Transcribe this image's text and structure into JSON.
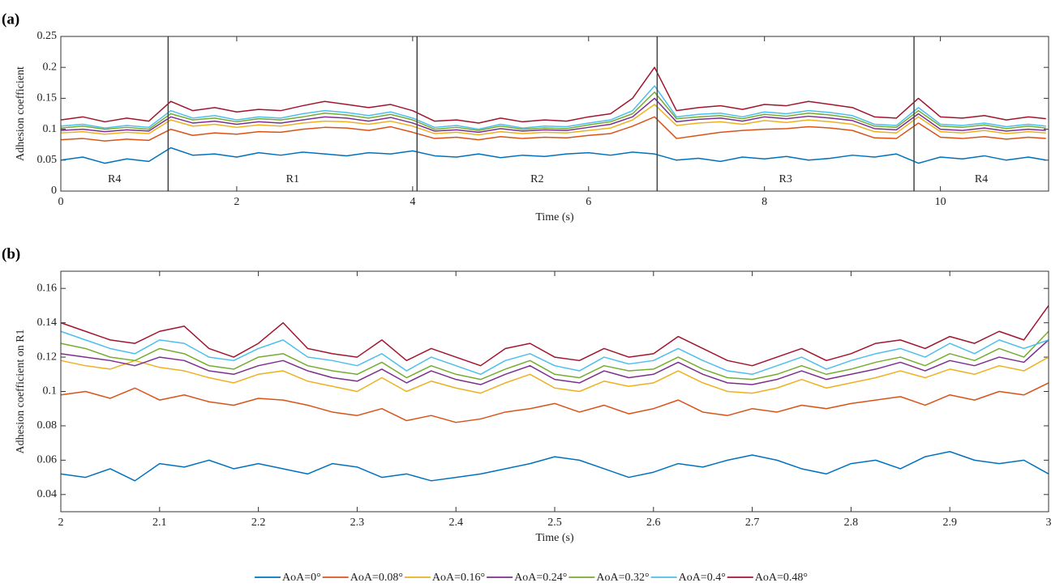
{
  "chart_data": [
    {
      "type": "line",
      "panel_label": "(a)",
      "x_label": "Time (s)",
      "y_label": "Adhesion coefficient",
      "x": [
        0,
        0.25,
        0.5,
        0.75,
        1,
        1.25,
        1.5,
        1.75,
        2,
        2.25,
        2.5,
        2.75,
        3,
        3.25,
        3.5,
        3.75,
        4,
        4.25,
        4.5,
        4.75,
        5,
        5.25,
        5.5,
        5.75,
        6,
        6.25,
        6.5,
        6.75,
        7,
        7.25,
        7.5,
        7.75,
        8,
        8.25,
        8.5,
        8.75,
        9,
        9.25,
        9.5,
        9.75,
        10,
        10.25,
        10.5,
        10.75,
        11,
        11.2
      ],
      "xlim": [
        0,
        11.23
      ],
      "xticks": [
        0,
        2,
        4,
        6,
        8,
        10
      ],
      "ylim": [
        0,
        0.25
      ],
      "yticks": [
        0,
        0.05,
        0.1,
        0.15,
        0.2,
        0.25
      ],
      "regions": [
        {
          "label": "R4",
          "start": 0,
          "end": 1.22
        },
        {
          "label": "R1",
          "start": 1.22,
          "end": 4.05
        },
        {
          "label": "R2",
          "start": 4.05,
          "end": 6.78
        },
        {
          "label": "R3",
          "start": 6.78,
          "end": 9.7
        },
        {
          "label": "R4",
          "start": 9.7,
          "end": 11.23
        }
      ],
      "series": [
        {
          "color": "#0072BD",
          "values": [
            0.05,
            0.055,
            0.045,
            0.052,
            0.048,
            0.07,
            0.058,
            0.06,
            0.055,
            0.062,
            0.058,
            0.063,
            0.06,
            0.057,
            0.062,
            0.06,
            0.065,
            0.057,
            0.055,
            0.06,
            0.054,
            0.058,
            0.056,
            0.06,
            0.062,
            0.058,
            0.063,
            0.06,
            0.05,
            0.053,
            0.048,
            0.055,
            0.052,
            0.056,
            0.05,
            0.053,
            0.058,
            0.055,
            0.06,
            0.045,
            0.055,
            0.052,
            0.057,
            0.05,
            0.055,
            0.05
          ]
        },
        {
          "color": "#D95319",
          "values": [
            0.083,
            0.085,
            0.081,
            0.084,
            0.082,
            0.1,
            0.09,
            0.094,
            0.092,
            0.096,
            0.095,
            0.1,
            0.103,
            0.102,
            0.098,
            0.104,
            0.095,
            0.085,
            0.087,
            0.083,
            0.088,
            0.085,
            0.087,
            0.086,
            0.09,
            0.093,
            0.105,
            0.12,
            0.085,
            0.09,
            0.095,
            0.098,
            0.1,
            0.101,
            0.104,
            0.102,
            0.098,
            0.086,
            0.085,
            0.11,
            0.087,
            0.085,
            0.088,
            0.084,
            0.087,
            0.085
          ]
        },
        {
          "color": "#EDB120",
          "values": [
            0.094,
            0.096,
            0.092,
            0.095,
            0.093,
            0.115,
            0.105,
            0.108,
            0.103,
            0.107,
            0.105,
            0.11,
            0.113,
            0.112,
            0.108,
            0.113,
            0.105,
            0.093,
            0.095,
            0.091,
            0.096,
            0.093,
            0.095,
            0.094,
            0.098,
            0.102,
            0.115,
            0.14,
            0.106,
            0.11,
            0.112,
            0.108,
            0.114,
            0.111,
            0.115,
            0.112,
            0.108,
            0.096,
            0.094,
            0.12,
            0.096,
            0.094,
            0.098,
            0.093,
            0.096,
            0.094
          ]
        },
        {
          "color": "#7E2F8E",
          "values": [
            0.098,
            0.1,
            0.096,
            0.099,
            0.097,
            0.12,
            0.11,
            0.113,
            0.108,
            0.112,
            0.11,
            0.115,
            0.12,
            0.118,
            0.113,
            0.119,
            0.11,
            0.097,
            0.099,
            0.095,
            0.101,
            0.097,
            0.099,
            0.098,
            0.103,
            0.108,
            0.12,
            0.15,
            0.112,
            0.116,
            0.118,
            0.113,
            0.12,
            0.117,
            0.121,
            0.118,
            0.114,
            0.101,
            0.099,
            0.125,
            0.1,
            0.098,
            0.102,
            0.097,
            0.1,
            0.098
          ]
        },
        {
          "color": "#77AC30",
          "values": [
            0.102,
            0.105,
            0.1,
            0.103,
            0.1,
            0.125,
            0.115,
            0.118,
            0.112,
            0.117,
            0.115,
            0.12,
            0.126,
            0.123,
            0.118,
            0.124,
            0.115,
            0.1,
            0.103,
            0.098,
            0.105,
            0.1,
            0.102,
            0.101,
            0.107,
            0.112,
            0.125,
            0.16,
            0.117,
            0.12,
            0.122,
            0.117,
            0.124,
            0.121,
            0.126,
            0.123,
            0.118,
            0.105,
            0.103,
            0.13,
            0.105,
            0.103,
            0.107,
            0.101,
            0.105,
            0.102
          ]
        },
        {
          "color": "#4DBEEE",
          "values": [
            0.105,
            0.108,
            0.102,
            0.106,
            0.103,
            0.13,
            0.118,
            0.122,
            0.115,
            0.12,
            0.118,
            0.125,
            0.13,
            0.127,
            0.122,
            0.128,
            0.118,
            0.103,
            0.106,
            0.1,
            0.108,
            0.102,
            0.105,
            0.104,
            0.11,
            0.115,
            0.13,
            0.17,
            0.12,
            0.124,
            0.126,
            0.12,
            0.128,
            0.125,
            0.13,
            0.127,
            0.122,
            0.108,
            0.106,
            0.135,
            0.108,
            0.106,
            0.11,
            0.104,
            0.108,
            0.105
          ]
        },
        {
          "color": "#A2142F",
          "values": [
            0.115,
            0.12,
            0.112,
            0.118,
            0.113,
            0.145,
            0.13,
            0.135,
            0.128,
            0.132,
            0.13,
            0.138,
            0.145,
            0.14,
            0.135,
            0.14,
            0.13,
            0.113,
            0.115,
            0.11,
            0.118,
            0.112,
            0.115,
            0.113,
            0.12,
            0.125,
            0.15,
            0.2,
            0.13,
            0.135,
            0.138,
            0.132,
            0.14,
            0.138,
            0.145,
            0.14,
            0.135,
            0.12,
            0.118,
            0.15,
            0.12,
            0.118,
            0.122,
            0.115,
            0.12,
            0.117
          ]
        }
      ]
    },
    {
      "type": "line",
      "panel_label": "(b)",
      "x_label": "Time (s)",
      "y_label": "Adhesion coefficient on R1",
      "legend": "bottom",
      "x": [
        2,
        2.025,
        2.05,
        2.075,
        2.1,
        2.125,
        2.15,
        2.175,
        2.2,
        2.225,
        2.25,
        2.275,
        2.3,
        2.325,
        2.35,
        2.375,
        2.4,
        2.425,
        2.45,
        2.475,
        2.5,
        2.525,
        2.55,
        2.575,
        2.6,
        2.625,
        2.65,
        2.675,
        2.7,
        2.725,
        2.75,
        2.775,
        2.8,
        2.825,
        2.85,
        2.875,
        2.9,
        2.925,
        2.95,
        2.975,
        3
      ],
      "xlim": [
        2,
        3
      ],
      "xticks": [
        2,
        2.1,
        2.2,
        2.3,
        2.4,
        2.5,
        2.6,
        2.7,
        2.8,
        2.9,
        3
      ],
      "ylim": [
        0.03,
        0.17
      ],
      "yticks": [
        0.04,
        0.06,
        0.08,
        0.1,
        0.12,
        0.14,
        0.16
      ],
      "series": [
        {
          "name": "AoA=0°",
          "color": "#0072BD",
          "values": [
            0.052,
            0.05,
            0.055,
            0.048,
            0.058,
            0.056,
            0.06,
            0.055,
            0.058,
            0.055,
            0.052,
            0.058,
            0.056,
            0.05,
            0.052,
            0.048,
            0.05,
            0.052,
            0.055,
            0.058,
            0.062,
            0.06,
            0.055,
            0.05,
            0.053,
            0.058,
            0.056,
            0.06,
            0.063,
            0.06,
            0.055,
            0.052,
            0.058,
            0.06,
            0.055,
            0.062,
            0.065,
            0.06,
            0.058,
            0.06,
            0.052
          ]
        },
        {
          "name": "AoA=0.08°",
          "color": "#D95319",
          "values": [
            0.098,
            0.1,
            0.096,
            0.102,
            0.095,
            0.098,
            0.094,
            0.092,
            0.096,
            0.095,
            0.092,
            0.088,
            0.086,
            0.09,
            0.083,
            0.086,
            0.082,
            0.084,
            0.088,
            0.09,
            0.093,
            0.088,
            0.092,
            0.087,
            0.09,
            0.095,
            0.088,
            0.086,
            0.09,
            0.088,
            0.092,
            0.09,
            0.093,
            0.095,
            0.097,
            0.092,
            0.098,
            0.095,
            0.1,
            0.098,
            0.105
          ]
        },
        {
          "name": "AoA=0.16°",
          "color": "#EDB120",
          "values": [
            0.118,
            0.115,
            0.113,
            0.118,
            0.114,
            0.112,
            0.108,
            0.105,
            0.11,
            0.112,
            0.106,
            0.103,
            0.1,
            0.108,
            0.1,
            0.106,
            0.102,
            0.099,
            0.105,
            0.11,
            0.102,
            0.1,
            0.106,
            0.103,
            0.105,
            0.112,
            0.105,
            0.1,
            0.099,
            0.102,
            0.107,
            0.102,
            0.105,
            0.108,
            0.112,
            0.108,
            0.113,
            0.11,
            0.115,
            0.112,
            0.12
          ]
        },
        {
          "name": "AoA=0.24°",
          "color": "#7E2F8E",
          "values": [
            0.122,
            0.12,
            0.118,
            0.115,
            0.12,
            0.118,
            0.112,
            0.11,
            0.115,
            0.118,
            0.112,
            0.108,
            0.106,
            0.113,
            0.105,
            0.112,
            0.107,
            0.104,
            0.11,
            0.115,
            0.107,
            0.105,
            0.112,
            0.108,
            0.11,
            0.117,
            0.11,
            0.105,
            0.104,
            0.107,
            0.112,
            0.107,
            0.11,
            0.113,
            0.117,
            0.112,
            0.118,
            0.115,
            0.12,
            0.117,
            0.13
          ]
        },
        {
          "name": "AoA=0.32°",
          "color": "#77AC30",
          "values": [
            0.128,
            0.125,
            0.12,
            0.118,
            0.125,
            0.122,
            0.115,
            0.113,
            0.12,
            0.122,
            0.115,
            0.112,
            0.11,
            0.117,
            0.108,
            0.115,
            0.11,
            0.107,
            0.113,
            0.118,
            0.11,
            0.108,
            0.115,
            0.112,
            0.113,
            0.12,
            0.113,
            0.108,
            0.107,
            0.11,
            0.115,
            0.11,
            0.113,
            0.117,
            0.12,
            0.115,
            0.122,
            0.118,
            0.125,
            0.12,
            0.135
          ]
        },
        {
          "name": "AoA=0.4°",
          "color": "#4DBEEE",
          "values": [
            0.135,
            0.13,
            0.125,
            0.122,
            0.13,
            0.128,
            0.12,
            0.118,
            0.125,
            0.13,
            0.12,
            0.118,
            0.115,
            0.122,
            0.112,
            0.12,
            0.115,
            0.11,
            0.118,
            0.122,
            0.115,
            0.112,
            0.12,
            0.116,
            0.118,
            0.125,
            0.118,
            0.112,
            0.11,
            0.115,
            0.12,
            0.113,
            0.118,
            0.122,
            0.125,
            0.12,
            0.128,
            0.122,
            0.13,
            0.125,
            0.13
          ]
        },
        {
          "name": "AoA=0.48°",
          "color": "#A2142F",
          "values": [
            0.14,
            0.135,
            0.13,
            0.128,
            0.135,
            0.138,
            0.125,
            0.12,
            0.128,
            0.14,
            0.125,
            0.122,
            0.12,
            0.13,
            0.118,
            0.125,
            0.12,
            0.115,
            0.125,
            0.128,
            0.12,
            0.118,
            0.125,
            0.12,
            0.122,
            0.132,
            0.125,
            0.118,
            0.115,
            0.12,
            0.125,
            0.118,
            0.122,
            0.128,
            0.13,
            0.125,
            0.132,
            0.128,
            0.135,
            0.13,
            0.15
          ]
        }
      ]
    }
  ]
}
